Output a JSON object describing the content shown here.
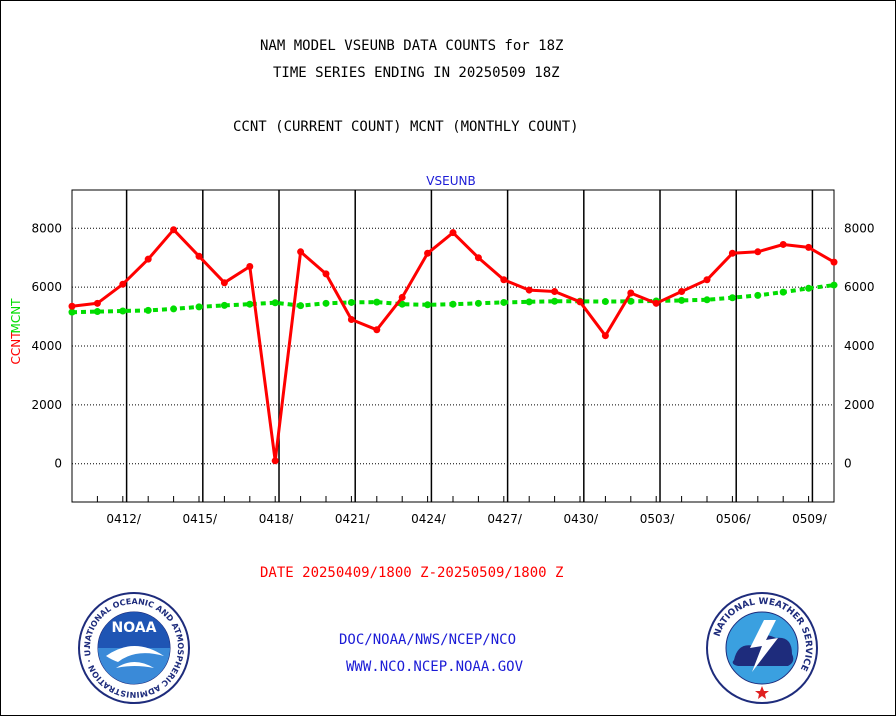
{
  "header": {
    "title_line1": "NAM MODEL VSEUNB DATA COUNTS for 18Z",
    "title_line2": "TIME SERIES ENDING IN 20250509 18Z",
    "title_line3": "CCNT (CURRENT COUNT) MCNT (MONTHLY COUNT)"
  },
  "footer": {
    "date_range": "DATE 20250409/1800 Z-20250509/1800 Z",
    "org_path": "DOC/NOAA/NWS/NCEP/NCO",
    "website": "WWW.NCO.NCEP.NOAA.GOV"
  },
  "logos": {
    "noaa_text": "NOAA",
    "noaa_ring_text": "NATIONAL OCEANIC AND ATMOSPHERIC ADMINISTRATION · U.S. DEPARTMENT OF COMMERCE ·",
    "nws_ring_text": "NATIONAL WEATHER SERVICE"
  },
  "colors": {
    "ccnt": "#ff0000",
    "mcnt": "#00dd00",
    "station_label": "#1b1bd6",
    "frame": "#000000"
  },
  "chart_data": {
    "type": "line",
    "title": "VSEUNB",
    "ylabel_left": [
      "CCNT",
      "MCNT"
    ],
    "ylim": [
      -1300,
      9300
    ],
    "yticks": [
      0,
      2000,
      4000,
      6000,
      8000
    ],
    "ytick_labels": [
      "0",
      "2000",
      "4000",
      "6000",
      "8000"
    ],
    "xlim": [
      0,
      30
    ],
    "xtick_positions": [
      2.15,
      5.15,
      8.15,
      11.15,
      14.15,
      17.15,
      20.15,
      23.15,
      26.15,
      29.15
    ],
    "xtick_labels": [
      "0412/",
      "0415/",
      "0418/",
      "0421/",
      "0424/",
      "0427/",
      "0430/",
      "0503/",
      "0506/",
      "0509/"
    ],
    "grid": true,
    "series": [
      {
        "name": "CCNT",
        "x": [
          0,
          1,
          2,
          3,
          4,
          5,
          6,
          7,
          8,
          9,
          10,
          11,
          12,
          13,
          14,
          15,
          16,
          17,
          18,
          19,
          20,
          21,
          22,
          23,
          24,
          25,
          26,
          27,
          28,
          29,
          30
        ],
        "values": [
          5350,
          5450,
          6100,
          6950,
          7950,
          7050,
          6150,
          6700,
          100,
          7200,
          6450,
          4900,
          4550,
          5650,
          7150,
          7850,
          7000,
          6250,
          5900,
          5850,
          5500,
          4350,
          5800,
          5450,
          5850,
          6250,
          7150,
          7200,
          7450,
          7350,
          6850
        ]
      },
      {
        "name": "MCNT",
        "x": [
          0,
          1,
          2,
          3,
          4,
          5,
          6,
          7,
          8,
          9,
          10,
          11,
          12,
          13,
          14,
          15,
          16,
          17,
          18,
          19,
          20,
          21,
          22,
          23,
          24,
          25,
          26,
          27,
          28,
          29,
          30
        ],
        "values": [
          5150,
          5170,
          5190,
          5210,
          5260,
          5330,
          5380,
          5420,
          5470,
          5370,
          5450,
          5480,
          5490,
          5420,
          5400,
          5420,
          5450,
          5480,
          5500,
          5520,
          5520,
          5510,
          5520,
          5530,
          5550,
          5570,
          5640,
          5720,
          5830,
          5960,
          6070
        ]
      }
    ]
  }
}
